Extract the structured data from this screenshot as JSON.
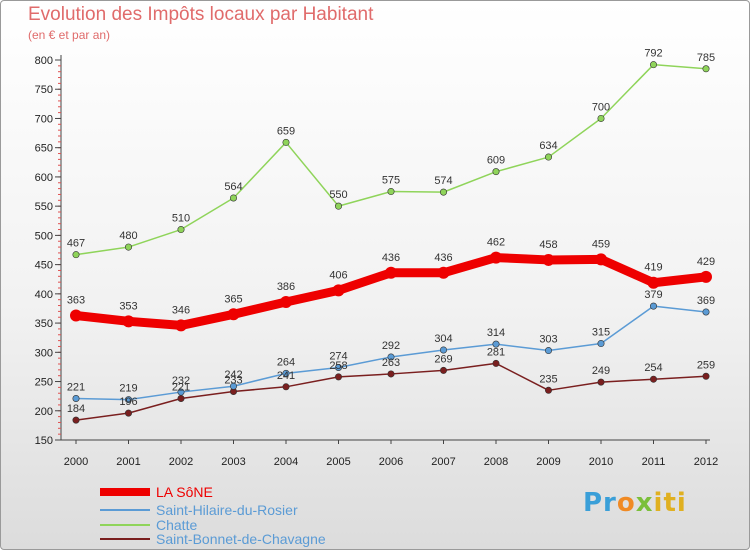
{
  "chart_data": {
    "type": "line",
    "title": "Evolution des Impôts locaux par Habitant",
    "subtitle": "(en € et par an)",
    "x": [
      "2000",
      "2001",
      "2002",
      "2003",
      "2004",
      "2005",
      "2006",
      "2007",
      "2008",
      "2009",
      "2010",
      "2011",
      "2012"
    ],
    "ylim": [
      150,
      800
    ],
    "yticks": [
      150,
      200,
      250,
      300,
      350,
      400,
      450,
      500,
      550,
      600,
      650,
      700,
      750,
      800
    ],
    "grid": false,
    "legend_position": "bottom-left",
    "series": [
      {
        "name": "LA SôNE",
        "color": "#ee0000",
        "values": [
          363,
          353,
          346,
          365,
          386,
          406,
          436,
          436,
          462,
          458,
          459,
          419,
          429
        ]
      },
      {
        "name": "Saint-Hilaire-du-Rosier",
        "color": "#5b9bd5",
        "values": [
          221,
          219,
          232,
          242,
          264,
          274,
          292,
          304,
          314,
          303,
          315,
          379,
          369
        ]
      },
      {
        "name": "Chatte",
        "color": "#8fd45a",
        "values": [
          467,
          480,
          510,
          564,
          659,
          550,
          575,
          574,
          609,
          634,
          700,
          792,
          785
        ]
      },
      {
        "name": "Saint-Bonnet-de-Chavagne",
        "color": "#7a1f1f",
        "values": [
          184,
          196,
          221,
          233,
          241,
          258,
          263,
          269,
          281,
          235,
          249,
          254,
          259
        ]
      }
    ]
  },
  "logo": {
    "p1": "Pr",
    "p2": "o",
    "p3": "x",
    "p4": "iti"
  }
}
